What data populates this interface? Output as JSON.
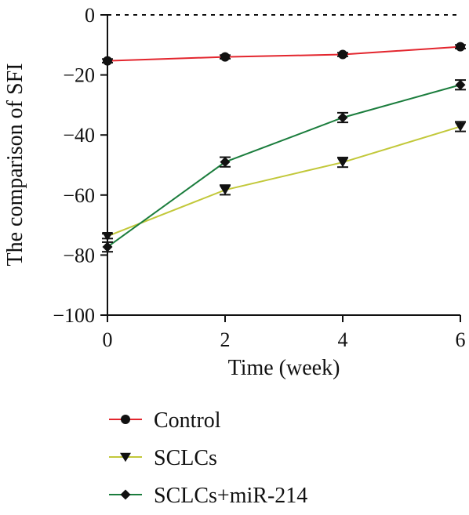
{
  "chart_data": {
    "type": "line",
    "title": "",
    "xlabel": "Time (week)",
    "ylabel": "The comparison of SFI",
    "x": [
      0,
      2,
      4,
      6
    ],
    "xticks": [
      0,
      2,
      4,
      6
    ],
    "yticks": [
      0,
      -20,
      -40,
      -60,
      -80,
      -100
    ],
    "xlim": [
      0,
      6
    ],
    "ylim": [
      -100,
      0
    ],
    "grid": false,
    "zero_line": "dashed",
    "legend_position": "bottom",
    "series": [
      {
        "name": "Control",
        "color": "#e3262e",
        "marker": "circle",
        "values": [
          -15.3,
          -14.0,
          -13.2,
          -10.6
        ],
        "errors": [
          0.6,
          0.6,
          0.6,
          0.6
        ]
      },
      {
        "name": "SCLCs",
        "color": "#c2c83a",
        "marker": "triangle-down",
        "values": [
          -73.7,
          -58.3,
          -49.1,
          -37.2
        ],
        "errors": [
          0.8,
          1.6,
          1.6,
          1.6
        ]
      },
      {
        "name": "SCLCs+miR-214",
        "color": "#1b7d3d",
        "marker": "diamond",
        "values": [
          -77.3,
          -49.0,
          -34.2,
          -23.3
        ],
        "errors": [
          1.6,
          1.6,
          1.6,
          1.6
        ]
      }
    ]
  }
}
